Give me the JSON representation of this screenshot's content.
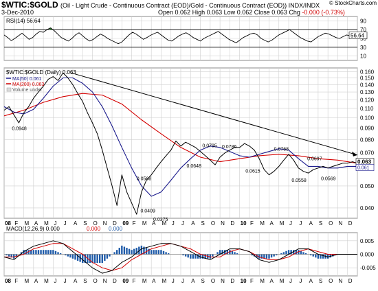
{
  "header": {
    "symbol": "$WTIC:$GOLD",
    "subtitle": "(Oil - Light Crude - Continuous Contract (EOD)/Gold - Continuous Contract (EOD)) INDX/INDX",
    "credit": "© StockCharts.com",
    "date": "3-Dec-2010",
    "ohlc": {
      "open_label": "Open",
      "open": "0.062",
      "high_label": "High",
      "high": "0.063",
      "low_label": "Low",
      "low": "0.062",
      "close_label": "Close",
      "close": "0.063",
      "chg_label": "Chg",
      "chg": "-0.000 (-0.73%)"
    }
  },
  "colors": {
    "price": "#000000",
    "ma50": "#1a1a8c",
    "ma200": "#d40000",
    "rsi_fill": "#2e8b2e",
    "macd_hist": "#1f5ba8",
    "trend": "#000000",
    "grid": "#cfcfcf"
  },
  "chart_data": [
    {
      "type": "line",
      "panel": "rsi",
      "legend": "RSI(14) 56.64",
      "current_value": "56.64",
      "y_ticks": [
        "90",
        "70",
        "50",
        "30",
        "10"
      ],
      "ylim": [
        0,
        100
      ],
      "overbought": 70,
      "oversold": 30,
      "series": [
        {
          "name": "RSI(14)",
          "values": [
            58,
            52,
            45,
            50,
            56,
            62,
            55,
            48,
            52,
            60,
            66,
            64,
            70,
            74,
            68,
            60,
            52,
            48,
            44,
            50,
            58,
            63,
            56,
            49,
            44,
            48,
            54,
            60,
            56,
            50,
            46,
            42,
            38,
            42,
            50,
            58,
            64,
            60,
            54,
            48,
            52,
            57,
            61,
            64,
            58,
            52,
            46,
            44,
            50,
            56,
            60,
            63,
            58,
            52,
            48,
            44,
            50,
            54,
            58,
            62,
            66,
            60,
            54,
            48,
            44,
            40,
            46,
            52,
            56,
            60,
            62,
            58,
            50,
            46,
            42,
            46,
            52,
            58,
            62,
            66,
            70,
            64,
            58,
            52,
            48,
            44,
            42,
            48,
            54,
            58,
            62,
            60,
            56,
            52,
            50,
            54,
            58,
            56,
            60,
            57
          ]
        }
      ]
    },
    {
      "type": "line",
      "panel": "price",
      "legend": [
        "$WTIC:$GOLD (Daily) 0.063",
        "MA(50) 0.061",
        "MA(200) 0.063",
        "Volume undef"
      ],
      "x_tick_labels": [
        "08",
        "F",
        "M",
        "A",
        "M",
        "J",
        "J",
        "A",
        "S",
        "O",
        "N",
        "D",
        "09",
        "F",
        "M",
        "A",
        "M",
        "J",
        "J",
        "A",
        "S",
        "O",
        "N",
        "D",
        "10",
        "F",
        "M",
        "A",
        "M",
        "J",
        "J",
        "A",
        "S",
        "O",
        "N",
        "D"
      ],
      "y_ticks": [
        "0.160",
        "0.150",
        "0.140",
        "0.130",
        "0.120",
        "0.110",
        "0.100",
        "0.090",
        "0.080",
        "0.070",
        "0.060",
        "0.050",
        "0.040"
      ],
      "log_scale": true,
      "ylim": [
        0.036,
        0.166
      ],
      "last_value_labels": [
        "0.063",
        "0.061"
      ],
      "annotations": [
        {
          "text": "0.0948",
          "x": 1.5,
          "y": 0.0948
        },
        {
          "text": "0.0568",
          "x": 14.2,
          "y": 0.0568
        },
        {
          "text": "0.0409",
          "x": 14.6,
          "y": 0.0409
        },
        {
          "text": "0.0375",
          "x": 15.9,
          "y": 0.0375
        },
        {
          "text": "0.0648",
          "x": 19.3,
          "y": 0.0648
        },
        {
          "text": "0.0795",
          "x": 20.9,
          "y": 0.0795
        },
        {
          "text": "0.0786",
          "x": 22.9,
          "y": 0.0786
        },
        {
          "text": "0.0615",
          "x": 25.3,
          "y": 0.0615
        },
        {
          "text": "0.0768",
          "x": 28.2,
          "y": 0.0768
        },
        {
          "text": "0.0558",
          "x": 30.0,
          "y": 0.0558
        },
        {
          "text": "0.0697",
          "x": 31.6,
          "y": 0.0697
        },
        {
          "text": "0.0569",
          "x": 33.0,
          "y": 0.0569
        }
      ],
      "trendline": {
        "x": [
          6.8,
          36.0
        ],
        "y": [
          0.158,
          0.0685
        ]
      },
      "series": [
        {
          "name": "$WTIC:$GOLD",
          "x": [
            0,
            0.5,
            1,
            1.5,
            2,
            2.5,
            3,
            3.5,
            4,
            4.5,
            5,
            5.5,
            6,
            6.5,
            7,
            7.5,
            8,
            8.5,
            9,
            9.5,
            10,
            10.5,
            11,
            11.5,
            12,
            12.5,
            13,
            13.5,
            14,
            14.5,
            15,
            15.5,
            16,
            16.5,
            17,
            17.5,
            18,
            18.5,
            19,
            19.5,
            20,
            20.5,
            21,
            21.5,
            22,
            22.5,
            23,
            23.5,
            24,
            24.5,
            25,
            25.5,
            26,
            26.5,
            27,
            27.5,
            28,
            28.5,
            29,
            29.5,
            30,
            30.5,
            31,
            31.5,
            32,
            32.5,
            33,
            33.5,
            34,
            34.5,
            35,
            35.5,
            36
          ],
          "y": [
            0.108,
            0.112,
            0.103,
            0.095,
            0.105,
            0.112,
            0.122,
            0.13,
            0.138,
            0.148,
            0.152,
            0.146,
            0.158,
            0.15,
            0.14,
            0.128,
            0.118,
            0.105,
            0.095,
            0.085,
            0.072,
            0.06,
            0.05,
            0.041,
            0.056,
            0.047,
            0.042,
            0.0375,
            0.047,
            0.053,
            0.056,
            0.06,
            0.064,
            0.068,
            0.072,
            0.079,
            0.075,
            0.078,
            0.076,
            0.074,
            0.071,
            0.068,
            0.065,
            0.062,
            0.067,
            0.07,
            0.072,
            0.074,
            0.074,
            0.077,
            0.075,
            0.072,
            0.066,
            0.059,
            0.056,
            0.058,
            0.061,
            0.065,
            0.069,
            0.065,
            0.06,
            0.058,
            0.057,
            0.059,
            0.06,
            0.061,
            0.06,
            0.061,
            0.062,
            0.063,
            0.063,
            0.064,
            0.063
          ]
        },
        {
          "name": "MA(50)",
          "x": [
            0,
            1,
            2,
            3,
            4,
            5,
            6,
            7,
            8,
            9,
            10,
            11,
            12,
            13,
            14,
            15,
            16,
            17,
            18,
            19,
            20,
            21,
            22,
            23,
            24,
            25,
            26,
            27,
            28,
            29,
            30,
            31,
            32,
            33,
            34,
            35,
            36
          ],
          "y": [
            0.112,
            0.106,
            0.104,
            0.109,
            0.122,
            0.138,
            0.15,
            0.15,
            0.142,
            0.13,
            0.112,
            0.092,
            0.074,
            0.06,
            0.05,
            0.045,
            0.047,
            0.053,
            0.06,
            0.066,
            0.072,
            0.075,
            0.074,
            0.071,
            0.068,
            0.067,
            0.069,
            0.071,
            0.073,
            0.072,
            0.066,
            0.061,
            0.061,
            0.06,
            0.06,
            0.061,
            0.061
          ]
        },
        {
          "name": "MA(200)",
          "x": [
            0,
            2,
            4,
            6,
            8,
            10,
            12,
            14,
            16,
            18,
            20,
            22,
            24,
            26,
            28,
            30,
            32,
            34,
            36
          ],
          "y": [
            0.102,
            0.108,
            0.117,
            0.124,
            0.128,
            0.126,
            0.115,
            0.098,
            0.085,
            0.074,
            0.067,
            0.064,
            0.066,
            0.068,
            0.069,
            0.068,
            0.066,
            0.065,
            0.063
          ]
        }
      ]
    },
    {
      "type": "line",
      "panel": "macd",
      "legend": [
        "MACD(12,26,9) 0.000",
        "0.000",
        "0.000"
      ],
      "y_ticks": [
        "0.005",
        "0.000",
        "-0.005"
      ],
      "ylim": [
        -0.008,
        0.008
      ],
      "x_tick_labels": [
        "08",
        "F",
        "M",
        "A",
        "M",
        "J",
        "J",
        "A",
        "S",
        "O",
        "N",
        "D",
        "09",
        "F",
        "M",
        "A",
        "M",
        "J",
        "J",
        "A",
        "S",
        "O",
        "N",
        "D",
        "10",
        "F",
        "M",
        "A",
        "M",
        "J",
        "J",
        "A",
        "S",
        "O",
        "N",
        "D"
      ],
      "series": [
        {
          "name": "MACD",
          "x": [
            0,
            1,
            2,
            3,
            4,
            5,
            6,
            7,
            8,
            9,
            10,
            11,
            12,
            13,
            14,
            15,
            16,
            17,
            18,
            19,
            20,
            21,
            22,
            23,
            24,
            25,
            26,
            27,
            28,
            29,
            30,
            31,
            32,
            33,
            34,
            35,
            36
          ],
          "values": [
            -0.001,
            -0.002,
            0.001,
            0.003,
            0.004,
            0.005,
            0.004,
            0.001,
            -0.002,
            -0.005,
            -0.007,
            -0.006,
            -0.003,
            -0.001,
            0.002,
            0.003,
            0.004,
            0.004,
            0.003,
            0.001,
            -0.001,
            -0.002,
            0.0,
            0.002,
            0.002,
            0.001,
            -0.002,
            -0.003,
            -0.002,
            0.0,
            0.002,
            0.002,
            0.0,
            -0.001,
            0.0,
            0.0,
            0.0
          ]
        },
        {
          "name": "Signal",
          "x": [
            0,
            1,
            2,
            3,
            4,
            5,
            6,
            7,
            8,
            9,
            10,
            11,
            12,
            13,
            14,
            15,
            16,
            17,
            18,
            19,
            20,
            21,
            22,
            23,
            24,
            25,
            26,
            27,
            28,
            29,
            30,
            31,
            32,
            33,
            34,
            35,
            36
          ],
          "values": [
            -0.001,
            -0.001,
            0.0,
            0.002,
            0.003,
            0.004,
            0.004,
            0.002,
            0.0,
            -0.003,
            -0.005,
            -0.006,
            -0.005,
            -0.002,
            0.0,
            0.002,
            0.003,
            0.004,
            0.003,
            0.002,
            0.0,
            -0.001,
            -0.001,
            0.001,
            0.002,
            0.001,
            -0.001,
            -0.002,
            -0.002,
            -0.001,
            0.001,
            0.002,
            0.001,
            0.0,
            0.0,
            0.0,
            0.0
          ]
        }
      ]
    }
  ]
}
